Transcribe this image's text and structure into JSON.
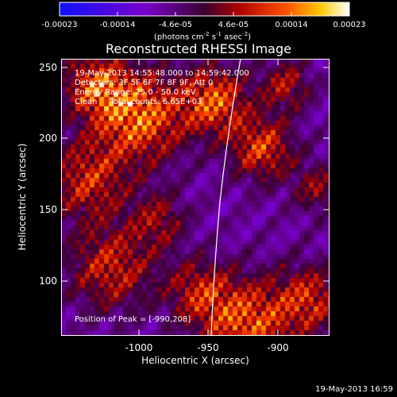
{
  "colorbar": {
    "ticks": [
      "-0.00023",
      "-0.00014",
      "-4.6e-05",
      "4.6e-05",
      "0.00014",
      "0.00023"
    ],
    "unit_prefix": "(photons cm",
    "unit_exp1": "-2",
    "unit_mid1": " s",
    "unit_exp2": "-1",
    "unit_mid2": " asec",
    "unit_exp3": "-2",
    "unit_suffix": ")"
  },
  "plot": {
    "title": "Reconstructed RHESSI Image",
    "xlabel": "Heliocentric X (arcsec)",
    "ylabel": "Heliocentric Y (arcsec)",
    "xticks": [
      "-1000",
      "-950",
      "-900"
    ],
    "yticks": [
      "250",
      "200",
      "150",
      "100"
    ]
  },
  "annotations": {
    "time_range": "19-May-2013 14:55:48.000 to 14:59:42.000",
    "detectors": "Detectors: 3F 5F 6F 7F 8F 9F, Att 0",
    "energy": "Energy Range: 25.0 - 50.0 keV",
    "method": "Clean     Total counts: 6.65E+03",
    "peak": "Position of Peak = [-990,208]"
  },
  "footer": {
    "timestamp": "19-May-2013 16:59"
  },
  "chart_data": {
    "type": "heatmap",
    "title": "Reconstructed RHESSI Image",
    "xlabel": "Heliocentric X (arcsec)",
    "ylabel": "Heliocentric Y (arcsec)",
    "xlim": [
      -1026,
      -879
    ],
    "ylim": [
      63,
      255
    ],
    "colorbar_range": [
      -0.00023,
      0.00023
    ],
    "colorbar_ticks": [
      -0.00023,
      -0.00014,
      -4.6e-05,
      4.6e-05,
      0.00014,
      0.00023
    ],
    "peak_position": [
      -990,
      208
    ],
    "total_counts": 6650,
    "energy_range_keV": [
      25.0,
      50.0
    ],
    "grid": false
  }
}
